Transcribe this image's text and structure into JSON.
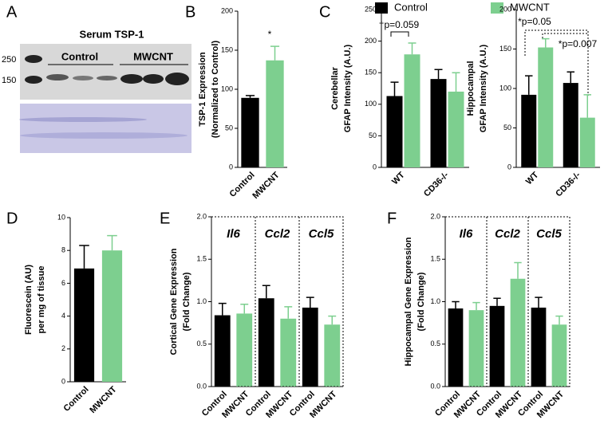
{
  "blot": {
    "label": "A",
    "title": "Serum TSP-1",
    "markers": [
      "250",
      "150"
    ],
    "groups": [
      "Control",
      "MWCNT"
    ]
  },
  "chart_data": [
    {
      "type": "bar",
      "label": "B",
      "ylabel": [
        "TSP-1 Expression",
        "(Normalized to Control)"
      ],
      "categories": [
        "Control",
        "MWCNT"
      ],
      "values": [
        89,
        137
      ],
      "errors": [
        3,
        18
      ],
      "colors": [
        "#000000",
        "#7dcf8f"
      ],
      "ylim": [
        0,
        200
      ],
      "yticks": [
        0,
        50,
        100,
        150,
        200
      ],
      "annotations": [
        "*"
      ]
    },
    {
      "type": "bar",
      "label": "C",
      "ylabel": [
        "Cerebellar",
        "GFAP Intensity (A.U.)"
      ],
      "categories": [
        "WT",
        "CD36-/-"
      ],
      "series": [
        {
          "name": "Control",
          "color": "#000000",
          "values": [
            113,
            140
          ],
          "errors": [
            22,
            15
          ]
        },
        {
          "name": "MWCNT",
          "color": "#7dcf8f",
          "values": [
            179,
            120
          ],
          "errors": [
            18,
            30
          ]
        }
      ],
      "ylim": [
        0,
        250
      ],
      "yticks": [
        0,
        50,
        100,
        150,
        200,
        250
      ],
      "annotations": [
        "†p=0.059"
      ]
    },
    {
      "type": "bar",
      "ylabel": [
        "Hippocampal",
        "GFAP Intensity (A.U.)"
      ],
      "categories": [
        "WT",
        "CD36-/-"
      ],
      "series": [
        {
          "color": "#000000",
          "values": [
            92,
            107
          ],
          "errors": [
            24,
            14
          ]
        },
        {
          "color": "#7dcf8f",
          "values": [
            152,
            63
          ],
          "errors": [
            11,
            29
          ]
        }
      ],
      "ylim": [
        0,
        200
      ],
      "yticks": [
        0,
        50,
        100,
        150,
        200
      ],
      "annotations": [
        "*p=0.05",
        "*p=0.007"
      ]
    },
    {
      "type": "bar",
      "label": "D",
      "ylabel": [
        "Fluorescein (AU)",
        "per mg of tissue"
      ],
      "categories": [
        "Control",
        "MWCNT"
      ],
      "values": [
        6.9,
        8.0
      ],
      "errors": [
        1.4,
        0.9
      ],
      "colors": [
        "#000000",
        "#7dcf8f"
      ],
      "ylim": [
        0,
        10
      ],
      "yticks": [
        0,
        2,
        4,
        6,
        8,
        10
      ]
    },
    {
      "type": "bar",
      "label": "E",
      "ylabel": [
        "Cortical Gene Expression",
        "(Fold Change)"
      ],
      "groups": [
        "Il6",
        "Ccl2",
        "Ccl5"
      ],
      "categories": [
        "Control",
        "MWCNT",
        "Control",
        "MWCNT",
        "Control",
        "MWCNT"
      ],
      "values": [
        0.84,
        0.86,
        1.04,
        0.8,
        0.93,
        0.73
      ],
      "errors": [
        0.14,
        0.11,
        0.15,
        0.14,
        0.12,
        0.1
      ],
      "colors": [
        "#000000",
        "#7dcf8f"
      ],
      "ylim": [
        0,
        2
      ],
      "yticks": [
        {
          "value": 0,
          "label": "0.0"
        },
        {
          "value": 0.5,
          "label": "0.5"
        },
        {
          "value": 1,
          "label": "1.0"
        },
        {
          "value": 1.5,
          "label": "1.5"
        },
        {
          "value": 2,
          "label": "2.0"
        }
      ]
    },
    {
      "type": "bar",
      "label": "F",
      "ylabel": [
        "Hippocampal Gene Expression",
        "(Fold Change)"
      ],
      "groups": [
        "Il6",
        "Ccl2",
        "Ccl5"
      ],
      "categories": [
        "Control",
        "MWCNT",
        "Control",
        "MWCNT",
        "Control",
        "MWCNT"
      ],
      "values": [
        0.92,
        0.9,
        0.95,
        1.27,
        0.93,
        0.73
      ],
      "errors": [
        0.08,
        0.09,
        0.09,
        0.19,
        0.12,
        0.1
      ],
      "colors": [
        "#000000",
        "#7dcf8f"
      ],
      "ylim": [
        0,
        2
      ],
      "yticks": [
        {
          "value": 0,
          "label": "0.0"
        },
        {
          "value": 0.5,
          "label": "0.5"
        },
        {
          "value": 1,
          "label": "1.0"
        },
        {
          "value": 1.5,
          "label": "1.5"
        },
        {
          "value": 2,
          "label": "2.0"
        }
      ]
    }
  ]
}
